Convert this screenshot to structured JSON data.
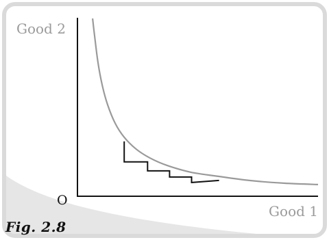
{
  "caption": "Fig. 2.8",
  "colors": {
    "frame": "#dadada",
    "corner_shade": "#e6e6e6",
    "curve": "#9a9a9a",
    "staircase": "#111111",
    "axis": "#111111",
    "axis_label": "#9a9a9a",
    "origin_label": "#111111"
  },
  "chart_data": {
    "type": "line",
    "title": "",
    "ylabel": "Good 2",
    "xlabel": "Good 1",
    "origin_label": "O",
    "xlim": [
      0,
      350
    ],
    "ylim": [
      0,
      260
    ],
    "grid": false,
    "legend": "none",
    "series": [
      {
        "style": "curve",
        "x": [
          22,
          25,
          30,
          36,
          44,
          55,
          68,
          85,
          105,
          130,
          165,
          205,
          250,
          300,
          350
        ],
        "y": [
          259,
          233,
          194,
          162,
          133,
          106,
          86,
          69,
          56,
          45,
          35,
          29,
          23,
          19,
          17
        ]
      },
      {
        "style": "staircase",
        "x": [
          68,
          68,
          102,
          102,
          134,
          134,
          166,
          166,
          206
        ],
        "y": [
          80,
          50,
          50,
          37,
          37,
          28,
          28,
          20,
          23
        ]
      }
    ]
  }
}
